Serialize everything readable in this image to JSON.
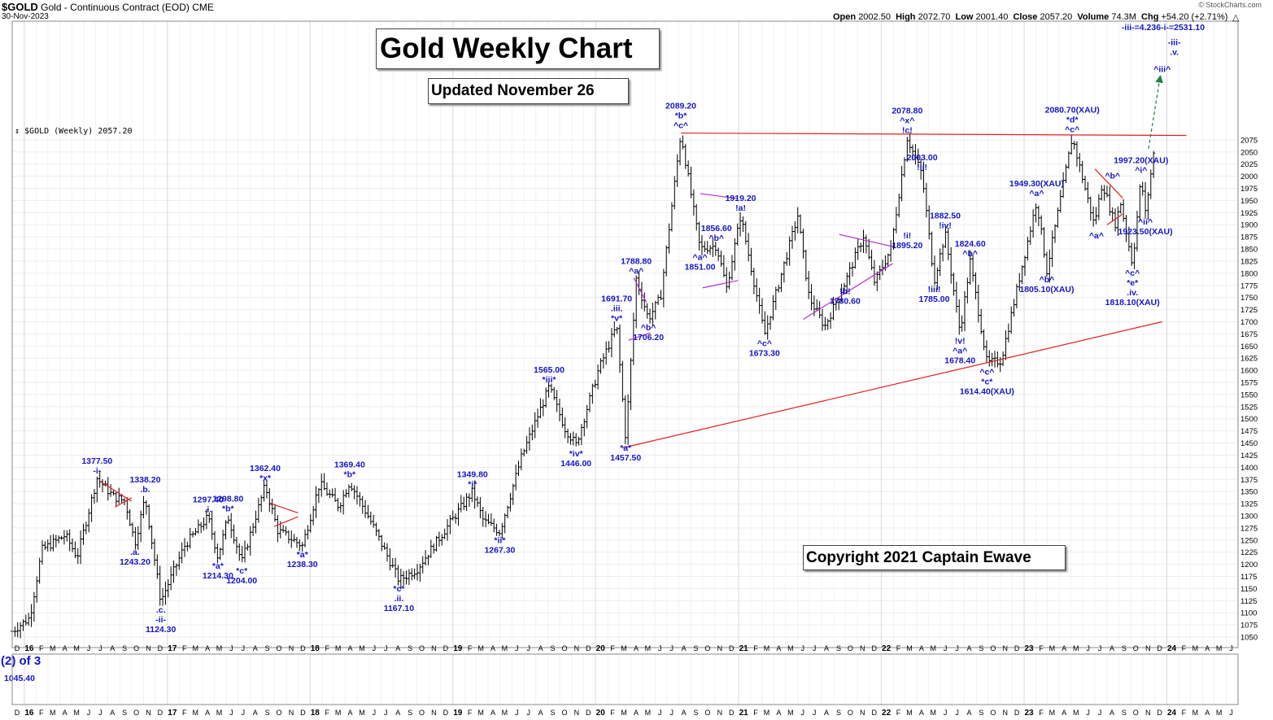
{
  "header": {
    "symbol": "$GOLD",
    "description": "Gold - Continuous Contract (EOD)",
    "exchange": "CME",
    "date": "30-Nov-2023",
    "watermark": "© StockCharts.com",
    "ohlc": {
      "open_label": "Open",
      "open": "2002.50",
      "high_label": "High",
      "high": "2072.70",
      "low_label": "Low",
      "low": "2001.40",
      "close_label": "Close",
      "close": "2057.20",
      "volume_label": "Volume",
      "volume": "74.3M",
      "chg_label": "Chg",
      "chg": "+54.20 (+2.71%)"
    },
    "legend": "↕ $GOLD (Weekly) 2057.20"
  },
  "titles": {
    "main": "Gold Weekly Chart",
    "updated": "Updated November 26",
    "copyright": "Copyright 2021 Captain Ewave"
  },
  "colors": {
    "annotation": "#1515c8",
    "trendline": "#e02020",
    "triangle": "#b030d0",
    "projection": "#208040",
    "bars": "#000000"
  },
  "chart_data": {
    "type": "ohlc",
    "ylim": [
      1035,
      2105
    ],
    "yticks": [
      1050,
      1075,
      1100,
      1125,
      1150,
      1175,
      1200,
      1225,
      1250,
      1275,
      1300,
      1325,
      1350,
      1375,
      1400,
      1425,
      1450,
      1475,
      1500,
      1525,
      1550,
      1575,
      1600,
      1625,
      1650,
      1675,
      1700,
      1725,
      1750,
      1775,
      1800,
      1825,
      1850,
      1875,
      1900,
      1925,
      1950,
      1975,
      2000,
      2025,
      2050,
      2075
    ],
    "xlim": [
      "2015-12-01",
      "2024-07-01"
    ],
    "month_labels": [
      "D",
      "16",
      "F",
      "M",
      "A",
      "M",
      "J",
      "J",
      "A",
      "S",
      "O",
      "N",
      "D",
      "17",
      "F",
      "M",
      "A",
      "M",
      "J",
      "J",
      "A",
      "S",
      "O",
      "N",
      "D",
      "18",
      "F",
      "M",
      "A",
      "M",
      "J",
      "J",
      "A",
      "S",
      "O",
      "N",
      "D",
      "19",
      "F",
      "M",
      "A",
      "M",
      "J",
      "J",
      "A",
      "S",
      "O",
      "N",
      "D",
      "20",
      "F",
      "M",
      "A",
      "M",
      "J",
      "J",
      "A",
      "S",
      "O",
      "N",
      "D",
      "21",
      "F",
      "M",
      "A",
      "M",
      "J",
      "J",
      "A",
      "S",
      "O",
      "N",
      "D",
      "22",
      "F",
      "M",
      "A",
      "M",
      "J",
      "J",
      "A",
      "S",
      "O",
      "N",
      "D",
      "23",
      "F",
      "M",
      "A",
      "M",
      "J",
      "J",
      "A",
      "S",
      "O",
      "N",
      "D",
      "24",
      "F",
      "M",
      "A",
      "M",
      "J"
    ],
    "price_path": [
      [
        "2015-12-01",
        1062
      ],
      [
        "2016-01-15",
        1090
      ],
      [
        "2016-02-15",
        1230
      ],
      [
        "2016-04-15",
        1260
      ],
      [
        "2016-05-15",
        1215
      ],
      [
        "2016-07-05",
        1377.5
      ],
      [
        "2016-08-15",
        1340
      ],
      [
        "2016-09-15",
        1330
      ],
      [
        "2016-10-10",
        1243.2
      ],
      [
        "2016-11-05",
        1338.2
      ],
      [
        "2016-12-15",
        1124.3
      ],
      [
        "2017-02-15",
        1240
      ],
      [
        "2017-04-15",
        1297.4
      ],
      [
        "2017-05-10",
        1214.3
      ],
      [
        "2017-06-05",
        1298.8
      ],
      [
        "2017-07-10",
        1204
      ],
      [
        "2017-09-08",
        1362.4
      ],
      [
        "2017-10-10",
        1270
      ],
      [
        "2017-12-12",
        1238.3
      ],
      [
        "2018-01-25",
        1366
      ],
      [
        "2018-03-15",
        1320
      ],
      [
        "2018-04-12",
        1369.4
      ],
      [
        "2018-06-01",
        1295
      ],
      [
        "2018-08-16",
        1167.1
      ],
      [
        "2018-10-01",
        1190
      ],
      [
        "2019-02-20",
        1349.8
      ],
      [
        "2019-03-20",
        1290
      ],
      [
        "2019-05-01",
        1267.3
      ],
      [
        "2019-06-25",
        1420
      ],
      [
        "2019-09-04",
        1565
      ],
      [
        "2019-10-15",
        1480
      ],
      [
        "2019-11-12",
        1446
      ],
      [
        "2020-01-08",
        1600
      ],
      [
        "2020-02-24",
        1691.7
      ],
      [
        "2020-03-18",
        1457.5
      ],
      [
        "2020-04-14",
        1788.8
      ],
      [
        "2020-05-15",
        1706.2
      ],
      [
        "2020-06-15",
        1750
      ],
      [
        "2020-08-06",
        2089.2
      ],
      [
        "2020-09-24",
        1851
      ],
      [
        "2020-11-05",
        1856.6
      ],
      [
        "2020-12-01",
        1770
      ],
      [
        "2021-01-06",
        1919.2
      ],
      [
        "2021-03-08",
        1673.3
      ],
      [
        "2021-06-01",
        1919.2
      ],
      [
        "2021-06-30",
        1750
      ],
      [
        "2021-08-09",
        1690
      ],
      [
        "2021-09-30",
        1780.6
      ],
      [
        "2021-11-16",
        1877
      ],
      [
        "2021-12-15",
        1780
      ],
      [
        "2022-01-25",
        1850
      ],
      [
        "2022-03-08",
        2078.8
      ],
      [
        "2022-04-15",
        2003
      ],
      [
        "2022-05-16",
        1785
      ],
      [
        "2022-06-13",
        1882.5
      ],
      [
        "2022-07-21",
        1678.4
      ],
      [
        "2022-08-16",
        1824.6
      ],
      [
        "2022-09-28",
        1614.4
      ],
      [
        "2022-11-03",
        1620
      ],
      [
        "2023-02-02",
        1949.3
      ],
      [
        "2023-02-28",
        1805.1
      ],
      [
        "2023-05-04",
        2080.7
      ],
      [
        "2023-06-29",
        1900
      ],
      [
        "2023-07-20",
        1987
      ],
      [
        "2023-08-21",
        1900
      ],
      [
        "2023-09-05",
        1945
      ],
      [
        "2023-10-05",
        1818.1
      ],
      [
        "2023-10-27",
        1997.2
      ],
      [
        "2023-11-07",
        1923.5
      ],
      [
        "2023-11-30",
        2057.2
      ]
    ],
    "trendlines": [
      {
        "kind": "resistance",
        "points": [
          [
            "2020-08-06",
            2089
          ],
          [
            "2024-02-20",
            2084
          ]
        ]
      },
      {
        "kind": "support",
        "points": [
          [
            "2020-03-10",
            1440
          ],
          [
            "2023-12-20",
            1700
          ]
        ]
      },
      {
        "kind": "triangle",
        "points": [
          [
            "2016-07-15",
            1370
          ],
          [
            "2016-10-01",
            1330
          ]
        ]
      },
      {
        "kind": "triangle",
        "points": [
          [
            "2016-08-20",
            1318
          ],
          [
            "2016-10-01",
            1337
          ]
        ]
      },
      {
        "kind": "triangle",
        "points": [
          [
            "2017-09-20",
            1326
          ],
          [
            "2017-12-01",
            1306
          ]
        ]
      },
      {
        "kind": "triangle",
        "points": [
          [
            "2017-10-01",
            1278
          ],
          [
            "2017-12-01",
            1298
          ]
        ]
      },
      {
        "kind": "wedge",
        "points": [
          [
            "2020-03-25",
            1662
          ],
          [
            "2020-05-20",
            1677
          ]
        ]
      },
      {
        "kind": "wedge",
        "points": [
          [
            "2020-04-08",
            1790
          ],
          [
            "2020-05-10",
            1740
          ]
        ]
      },
      {
        "kind": "wedge",
        "points": [
          [
            "2020-09-25",
            1964
          ],
          [
            "2020-12-30",
            1954
          ]
        ]
      },
      {
        "kind": "wedge",
        "points": [
          [
            "2020-10-01",
            1770
          ],
          [
            "2020-12-30",
            1785
          ]
        ]
      },
      {
        "kind": "wedge",
        "points": [
          [
            "2021-06-15",
            1705
          ],
          [
            "2022-01-30",
            1820
          ]
        ]
      },
      {
        "kind": "wedge",
        "points": [
          [
            "2021-09-15",
            1880
          ],
          [
            "2022-01-30",
            1855
          ]
        ]
      },
      {
        "kind": "triangle",
        "points": [
          [
            "2023-07-01",
            2015
          ],
          [
            "2023-09-10",
            1955
          ]
        ]
      },
      {
        "kind": "triangle",
        "points": [
          [
            "2023-08-01",
            1900
          ],
          [
            "2023-09-10",
            1922
          ]
        ]
      },
      {
        "kind": "projection",
        "points": [
          [
            "2023-11-15",
            2057
          ],
          [
            "2023-12-15",
            2205
          ]
        ]
      }
    ],
    "annotations": [
      {
        "t": "2016-07-05",
        "p": 1377.5,
        "pos": "above",
        "lines": [
          "1377.50",
          "-i-"
        ]
      },
      {
        "t": "2016-10-10",
        "p": 1243.2,
        "pos": "below",
        "lines": [
          ".a.",
          "1243.20"
        ]
      },
      {
        "t": "2016-11-05",
        "p": 1338.2,
        "pos": "above",
        "lines": [
          "1338.20",
          ".b."
        ]
      },
      {
        "t": "2016-12-15",
        "p": 1124.3,
        "pos": "below",
        "lines": [
          ".c.",
          "-ii-",
          "1124.30"
        ]
      },
      {
        "t": "2017-04-15",
        "p": 1297.4,
        "pos": "above",
        "lines": [
          "1297.40",
          ".i."
        ]
      },
      {
        "t": "2017-05-10",
        "p": 1214.3,
        "pos": "below",
        "lines": [
          "*a*",
          "1214.30"
        ]
      },
      {
        "t": "2017-06-05",
        "p": 1298.8,
        "pos": "above",
        "lines": [
          "1298.80",
          "*b*"
        ]
      },
      {
        "t": "2017-07-10",
        "p": 1204,
        "pos": "below",
        "lines": [
          "*c*",
          "1204.00"
        ]
      },
      {
        "t": "2017-09-08",
        "p": 1362.4,
        "pos": "above",
        "lines": [
          "1362.40",
          "*x*"
        ]
      },
      {
        "t": "2017-12-12",
        "p": 1238.3,
        "pos": "below",
        "lines": [
          "*a*",
          "1238.30"
        ]
      },
      {
        "t": "2018-04-12",
        "p": 1369.4,
        "pos": "above",
        "lines": [
          "1369.40",
          "*b*"
        ]
      },
      {
        "t": "2018-08-16",
        "p": 1167.1,
        "pos": "below",
        "lines": [
          "*c*",
          ".ii.",
          "1167.10"
        ]
      },
      {
        "t": "2019-02-20",
        "p": 1349.8,
        "pos": "above",
        "lines": [
          "1349.80",
          "*i*"
        ]
      },
      {
        "t": "2019-05-01",
        "p": 1267.3,
        "pos": "below",
        "lines": [
          "*ii*",
          "1267.30"
        ]
      },
      {
        "t": "2019-09-04",
        "p": 1565,
        "pos": "above",
        "lines": [
          "1565.00",
          "*iii*"
        ]
      },
      {
        "t": "2019-11-12",
        "p": 1446,
        "pos": "below",
        "lines": [
          "*iv*",
          "1446.00"
        ]
      },
      {
        "t": "2020-02-24",
        "p": 1691.7,
        "pos": "above",
        "lines": [
          "1691.70",
          ".iii.",
          "*v*"
        ]
      },
      {
        "t": "2020-03-18",
        "p": 1457.5,
        "pos": "below",
        "lines": [
          "*a*",
          "1457.50"
        ]
      },
      {
        "t": "2020-04-14",
        "p": 1788.8,
        "pos": "above",
        "lines": [
          "1788.80",
          "^a^"
        ]
      },
      {
        "t": "2020-05-15",
        "p": 1706.2,
        "pos": "below",
        "lines": [
          "^b^",
          "1706.20"
        ]
      },
      {
        "t": "2020-08-06",
        "p": 2089.2,
        "pos": "above",
        "lines": [
          "2089.20",
          "*b*",
          "^c^"
        ]
      },
      {
        "t": "2020-09-24",
        "p": 1851,
        "pos": "below",
        "lines": [
          "^a^",
          "1851.00"
        ]
      },
      {
        "t": "2020-11-05",
        "p": 1856.6,
        "pos": "above",
        "lines": [
          "1856.60",
          "^b^"
        ]
      },
      {
        "t": "2021-01-06",
        "p": 1919.2,
        "pos": "above",
        "lines": [
          "1919.20",
          "!a!"
        ]
      },
      {
        "t": "2021-03-08",
        "p": 1673.3,
        "pos": "below",
        "lines": [
          "^c^",
          "1673.30"
        ]
      },
      {
        "t": "2021-09-30",
        "p": 1780.6,
        "pos": "below",
        "lines": [
          "!b!",
          "1780.60"
        ]
      },
      {
        "t": "2022-03-08",
        "p": 2078.8,
        "pos": "above",
        "lines": [
          "2078.80",
          "^x^",
          "!c!"
        ]
      },
      {
        "t": "2022-03-08",
        "p": 1895.2,
        "pos": "below",
        "lines": [
          "!i!",
          "1895.20"
        ]
      },
      {
        "t": "2022-04-15",
        "p": 2003,
        "pos": "above",
        "lines": [
          "2003.00",
          "!ii!"
        ]
      },
      {
        "t": "2022-05-16",
        "p": 1785,
        "pos": "below",
        "lines": [
          "!iii!",
          "1785.00"
        ]
      },
      {
        "t": "2022-06-13",
        "p": 1882.5,
        "pos": "above",
        "lines": [
          "1882.50",
          "!iv!"
        ]
      },
      {
        "t": "2022-07-21",
        "p": 1678.4,
        "pos": "below",
        "lines": [
          "!v!",
          "^a^",
          "1678.40"
        ]
      },
      {
        "t": "2022-08-16",
        "p": 1824.6,
        "pos": "above",
        "lines": [
          "1824.60",
          "^b^"
        ]
      },
      {
        "t": "2022-09-28",
        "p": 1614.4,
        "pos": "below",
        "lines": [
          "^c^",
          "*c*",
          "1614.40(XAU)"
        ]
      },
      {
        "t": "2023-02-02",
        "p": 1949.3,
        "pos": "above",
        "lines": [
          "1949.30(XAU)",
          "^a^"
        ]
      },
      {
        "t": "2023-02-28",
        "p": 1805.1,
        "pos": "below",
        "lines": [
          "^b^",
          "1805.10(XAU)"
        ]
      },
      {
        "t": "2023-05-04",
        "p": 2080.7,
        "pos": "above",
        "lines": [
          "2080.70(XAU)",
          "*d*",
          "^c^"
        ]
      },
      {
        "t": "2023-07-05",
        "p": 1895,
        "pos": "below",
        "lines": [
          "^a^"
        ]
      },
      {
        "t": "2023-08-15",
        "p": 1985,
        "pos": "above",
        "lines": [
          "^b^"
        ]
      },
      {
        "t": "2023-10-05",
        "p": 1818.1,
        "pos": "below",
        "lines": [
          "^c^",
          "*e*",
          ".iv.",
          "1818.10(XAU)"
        ]
      },
      {
        "t": "2023-10-27",
        "p": 1997.2,
        "pos": "above",
        "lines": [
          "1997.20(XAU)",
          "^i^"
        ]
      },
      {
        "t": "2023-11-07",
        "p": 1923.5,
        "pos": "below",
        "lines": [
          "^ii^",
          "1923.50(XAU)"
        ]
      },
      {
        "t": "2023-12-20",
        "p": 2205,
        "pos": "above",
        "lines": [
          "^iii^"
        ]
      },
      {
        "t": "2024-01-20",
        "p": 2240,
        "pos": "above",
        "lines": [
          "-iii-",
          ".v."
        ]
      }
    ],
    "projection_label": "-iii-=4.236-i-=2531.10",
    "lower_panel": {
      "wave_label": "(2) of 3",
      "low_value": "1045.40"
    }
  }
}
